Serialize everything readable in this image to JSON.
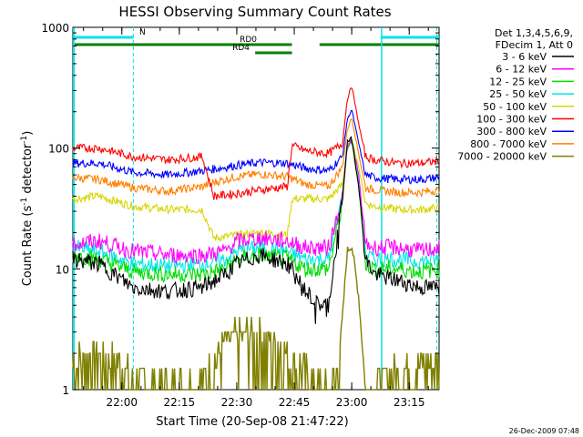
{
  "chart_data": {
    "type": "line",
    "title": "HESSI Observing Summary Count Rates",
    "xlabel": "Start Time (20-Sep-08 21:47:22)",
    "ylabel_main": "Count Rate (s",
    "ylabel_sup1": "-1",
    "ylabel_mid": " detector",
    "ylabel_sup2": "-1",
    "ylabel_end": ")",
    "y_scale": "log",
    "ylim": [
      1,
      1000
    ],
    "xlim_minutes": [
      21.787,
      23.38
    ],
    "x_tick_labels": [
      "22:00",
      "22:15",
      "22:30",
      "22:45",
      "23:00",
      "23:15"
    ],
    "x_tick_hours": [
      22.0,
      22.25,
      22.5,
      22.75,
      23.0,
      23.25
    ],
    "y_tick_labels": [
      "1",
      "10",
      "100",
      "1000"
    ],
    "y_tick_values": [
      1,
      10,
      100,
      1000
    ],
    "footer_date": "26-Dec-2009 07:48",
    "legend": {
      "header_line1": "Det 1,3,4,5,6,9,",
      "header_line2": "FDecim 1, Att 0",
      "entries": [
        {
          "label": "3 - 6 keV",
          "color": "#000000"
        },
        {
          "label": "6 - 12 keV",
          "color": "#ff00ff"
        },
        {
          "label": "12 - 25 keV",
          "color": "#00dd00"
        },
        {
          "label": "25 - 50 keV",
          "color": "#00e5e5"
        },
        {
          "label": "50 - 100 keV",
          "color": "#d6d600"
        },
        {
          "label": "100 - 300 keV",
          "color": "#ff0000"
        },
        {
          "label": "300 - 800 keV",
          "color": "#0000ff"
        },
        {
          "label": "800 - 7000 keV",
          "color": "#ff8000"
        },
        {
          "label": "7000 - 20000 keV",
          "color": "#808000"
        }
      ]
    },
    "flags": [
      {
        "label": "N",
        "color": "#00e5e5",
        "segments": [
          [
            21.787,
            22.05
          ],
          [
            23.13,
            23.38
          ]
        ]
      },
      {
        "label": "RD0",
        "color": "#008000",
        "segments": [
          [
            21.787,
            22.74
          ],
          [
            22.86,
            23.38
          ]
        ]
      },
      {
        "label": "RD4",
        "color": "#008000",
        "segments": [
          [
            22.58,
            22.74
          ]
        ]
      }
    ],
    "night_boundaries_hours": [
      22.05,
      23.13,
      23.37
    ],
    "series": [
      {
        "name": "3 - 6 keV",
        "color": "#000000",
        "x": [
          21.787,
          21.9,
          22.05,
          22.2,
          22.35,
          22.45,
          22.5,
          22.6,
          22.72,
          22.8,
          22.85,
          22.9,
          22.96,
          22.98,
          23.0,
          23.03,
          23.06,
          23.1,
          23.2,
          23.3,
          23.38
        ],
        "y": [
          12,
          11,
          7,
          6.5,
          7,
          9,
          11,
          13,
          11,
          6.5,
          5,
          5,
          40,
          110,
          120,
          50,
          12,
          9,
          8,
          7,
          7
        ]
      },
      {
        "name": "6 - 12 keV",
        "color": "#ff00ff",
        "x": [
          21.787,
          21.9,
          22.05,
          22.2,
          22.35,
          22.45,
          22.5,
          22.6,
          22.72,
          22.8,
          22.9,
          22.96,
          22.98,
          23.0,
          23.03,
          23.06,
          23.1,
          23.2,
          23.3,
          23.38
        ],
        "y": [
          16,
          17,
          14,
          13,
          13,
          14,
          17,
          18,
          17,
          15,
          15,
          40,
          100,
          115,
          60,
          16,
          15,
          15,
          14,
          15
        ]
      },
      {
        "name": "12 - 25 keV",
        "color": "#00dd00",
        "x": [
          21.787,
          21.9,
          22.05,
          22.2,
          22.35,
          22.45,
          22.5,
          22.6,
          22.72,
          22.8,
          22.9,
          22.96,
          22.98,
          23.0,
          23.03,
          23.06,
          23.1,
          23.2,
          23.3,
          23.38
        ],
        "y": [
          13,
          12,
          9.5,
          9,
          9,
          10,
          12,
          13,
          12,
          10,
          10,
          35,
          100,
          115,
          50,
          11,
          10,
          10,
          9.5,
          10
        ]
      },
      {
        "name": "25 - 50 keV",
        "color": "#00e5e5",
        "x": [
          21.787,
          21.9,
          22.05,
          22.2,
          22.35,
          22.45,
          22.5,
          22.6,
          22.72,
          22.8,
          22.9,
          22.96,
          22.98,
          23.0,
          23.03,
          23.06,
          23.1,
          23.2,
          23.3,
          23.38
        ],
        "y": [
          15,
          14,
          11,
          10.5,
          11,
          12,
          14,
          15,
          14,
          12,
          12,
          40,
          105,
          118,
          55,
          13,
          12,
          12,
          11.5,
          12
        ]
      },
      {
        "name": "50 - 100 keV",
        "color": "#d6d600",
        "x": [
          21.787,
          21.9,
          22.05,
          22.2,
          22.35,
          22.4,
          22.5,
          22.6,
          22.72,
          22.74,
          22.8,
          22.9,
          22.96,
          22.98,
          23.0,
          23.03,
          23.06,
          23.1,
          23.2,
          23.3,
          23.38
        ],
        "y": [
          38,
          40,
          33,
          31,
          31,
          18,
          19,
          20,
          19,
          38,
          38,
          38,
          50,
          100,
          120,
          70,
          35,
          33,
          31,
          31,
          32
        ]
      },
      {
        "name": "100 - 300 keV",
        "color": "#ff0000",
        "x": [
          21.787,
          21.9,
          22.05,
          22.2,
          22.35,
          22.4,
          22.5,
          22.6,
          22.72,
          22.74,
          22.8,
          22.9,
          22.96,
          22.98,
          23.0,
          23.03,
          23.06,
          23.1,
          23.2,
          23.3,
          23.38
        ],
        "y": [
          100,
          100,
          85,
          80,
          85,
          40,
          42,
          45,
          48,
          105,
          95,
          90,
          110,
          250,
          330,
          160,
          85,
          80,
          75,
          75,
          78
        ]
      },
      {
        "name": "300 - 800 keV",
        "color": "#0000ff",
        "x": [
          21.787,
          21.9,
          22.05,
          22.2,
          22.35,
          22.4,
          22.5,
          22.6,
          22.72,
          22.8,
          22.9,
          22.96,
          22.98,
          23.0,
          23.03,
          23.06,
          23.1,
          23.2,
          23.3,
          23.38
        ],
        "y": [
          75,
          75,
          63,
          60,
          65,
          67,
          72,
          76,
          75,
          68,
          65,
          85,
          170,
          210,
          110,
          60,
          57,
          55,
          55,
          57
        ]
      },
      {
        "name": "800 - 7000 keV",
        "color": "#ff8000",
        "x": [
          21.787,
          21.9,
          22.05,
          22.2,
          22.35,
          22.4,
          22.5,
          22.6,
          22.72,
          22.8,
          22.9,
          22.96,
          22.98,
          23.0,
          23.03,
          23.06,
          23.1,
          23.2,
          23.3,
          23.38
        ],
        "y": [
          57,
          55,
          47,
          44,
          48,
          52,
          58,
          61,
          58,
          50,
          48,
          70,
          140,
          180,
          90,
          47,
          45,
          43,
          43,
          45
        ]
      },
      {
        "name": "7000 - 20000 keV",
        "color": "#808000",
        "x": [
          21.787,
          21.9,
          22.0,
          22.05,
          22.2,
          22.35,
          22.45,
          22.55,
          22.65,
          22.75,
          22.85,
          22.93,
          22.96,
          22.98,
          23.0,
          23.03,
          23.06,
          23.1,
          23.2,
          23.3,
          23.38
        ],
        "y": [
          1.6,
          1.8,
          1.5,
          1.0,
          1.0,
          1.0,
          2.4,
          2.8,
          2.6,
          1.6,
          1.0,
          1.0,
          4.0,
          14,
          16,
          6,
          1.0,
          1.0,
          1.4,
          1.6,
          1.5
        ]
      }
    ]
  }
}
